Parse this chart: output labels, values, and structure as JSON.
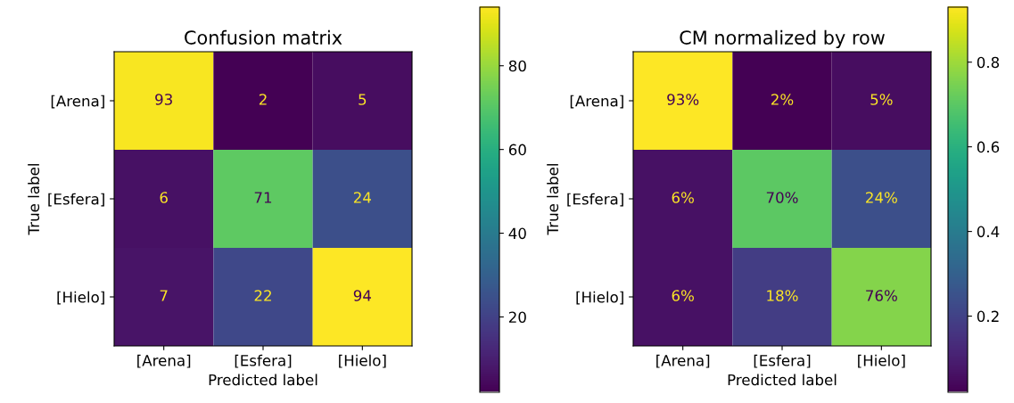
{
  "chart_data": [
    {
      "type": "heatmap",
      "title": "Confusion matrix",
      "xlabel": "Predicted label",
      "ylabel": "True label",
      "categories": [
        "[Arena]",
        "[Esfera]",
        "[Hielo]"
      ],
      "y_categories": [
        "[Arena]",
        "[Esfera]",
        "[Hielo]"
      ],
      "cells": [
        [
          93,
          2,
          5
        ],
        [
          6,
          71,
          24
        ],
        [
          7,
          22,
          94
        ]
      ],
      "clim": [
        2,
        94
      ],
      "cticks": [
        20,
        40,
        60,
        80
      ],
      "data_labels": true
    },
    {
      "type": "heatmap",
      "title": "CM normalized by row",
      "xlabel": "Predicted label",
      "ylabel": "True label",
      "categories": [
        "[Arena]",
        "[Esfera]",
        "[Hielo]"
      ],
      "y_categories": [
        "[Arena]",
        "[Esfera]",
        "[Hielo]"
      ],
      "cells": [
        [
          0.93,
          0.02,
          0.05
        ],
        [
          0.06,
          0.7,
          0.24
        ],
        [
          0.06,
          0.18,
          0.76
        ]
      ],
      "cell_labels": [
        [
          "93%",
          "2%",
          "5%"
        ],
        [
          "6%",
          "70%",
          "24%"
        ],
        [
          "6%",
          "18%",
          "76%"
        ]
      ],
      "clim": [
        0.02,
        0.93
      ],
      "cticks": [
        0.2,
        0.4,
        0.6,
        0.8
      ]
    }
  ]
}
